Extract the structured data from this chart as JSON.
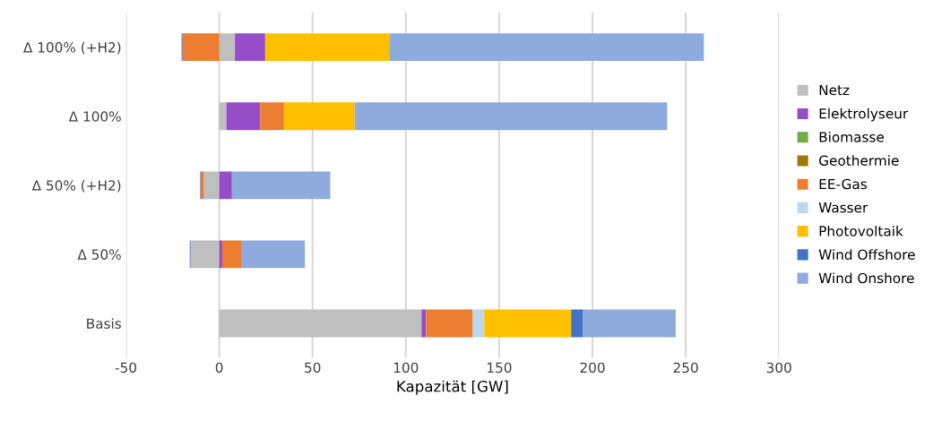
{
  "chart_data": {
    "type": "bar",
    "orientation": "horizontal",
    "stacked": true,
    "xlabel": "Kapazität [GW]",
    "categories": [
      "Δ 100% (+H2)",
      "Δ 100%",
      "Δ 50% (+H2)",
      "Δ 50%",
      "Basis"
    ],
    "series": [
      {
        "name": "Netz",
        "color": "#bfbfbf",
        "values": [
          8.4,
          3.8,
          -8.2,
          -15.4,
          108.4
        ]
      },
      {
        "name": "Elektrolyseur",
        "color": "#954ec8",
        "values": [
          16.2,
          18.1,
          6.8,
          1.6,
          2.4
        ]
      },
      {
        "name": "Biomasse",
        "color": "#70ad47",
        "values": [
          0,
          0,
          0,
          0,
          0
        ]
      },
      {
        "name": "Geothermie",
        "color": "#9c7a00",
        "values": [
          0,
          0,
          0,
          0,
          0
        ]
      },
      {
        "name": "EE-Gas",
        "color": "#ed7d31",
        "values": [
          -19.7,
          12.8,
          -1.7,
          10.1,
          25.1
        ]
      },
      {
        "name": "Wasser",
        "color": "#bdd7ee",
        "values": [
          0,
          0,
          0,
          0,
          6.1
        ]
      },
      {
        "name": "Photovoltaik",
        "color": "#ffc000",
        "values": [
          66.8,
          37.9,
          0,
          0,
          46.6
        ]
      },
      {
        "name": "Wind Offshore",
        "color": "#4472c4",
        "values": [
          -0.5,
          0,
          -0.3,
          -0.4,
          6.4
        ]
      },
      {
        "name": "Wind Onshore",
        "color": "#8faadc",
        "values": [
          168.3,
          167.4,
          52.7,
          34.2,
          49.6
        ]
      }
    ],
    "xlim": [
      -50,
      300
    ],
    "xticks": [
      -50,
      0,
      50,
      100,
      150,
      200,
      250,
      300
    ],
    "grid": "x",
    "legend": "right"
  }
}
